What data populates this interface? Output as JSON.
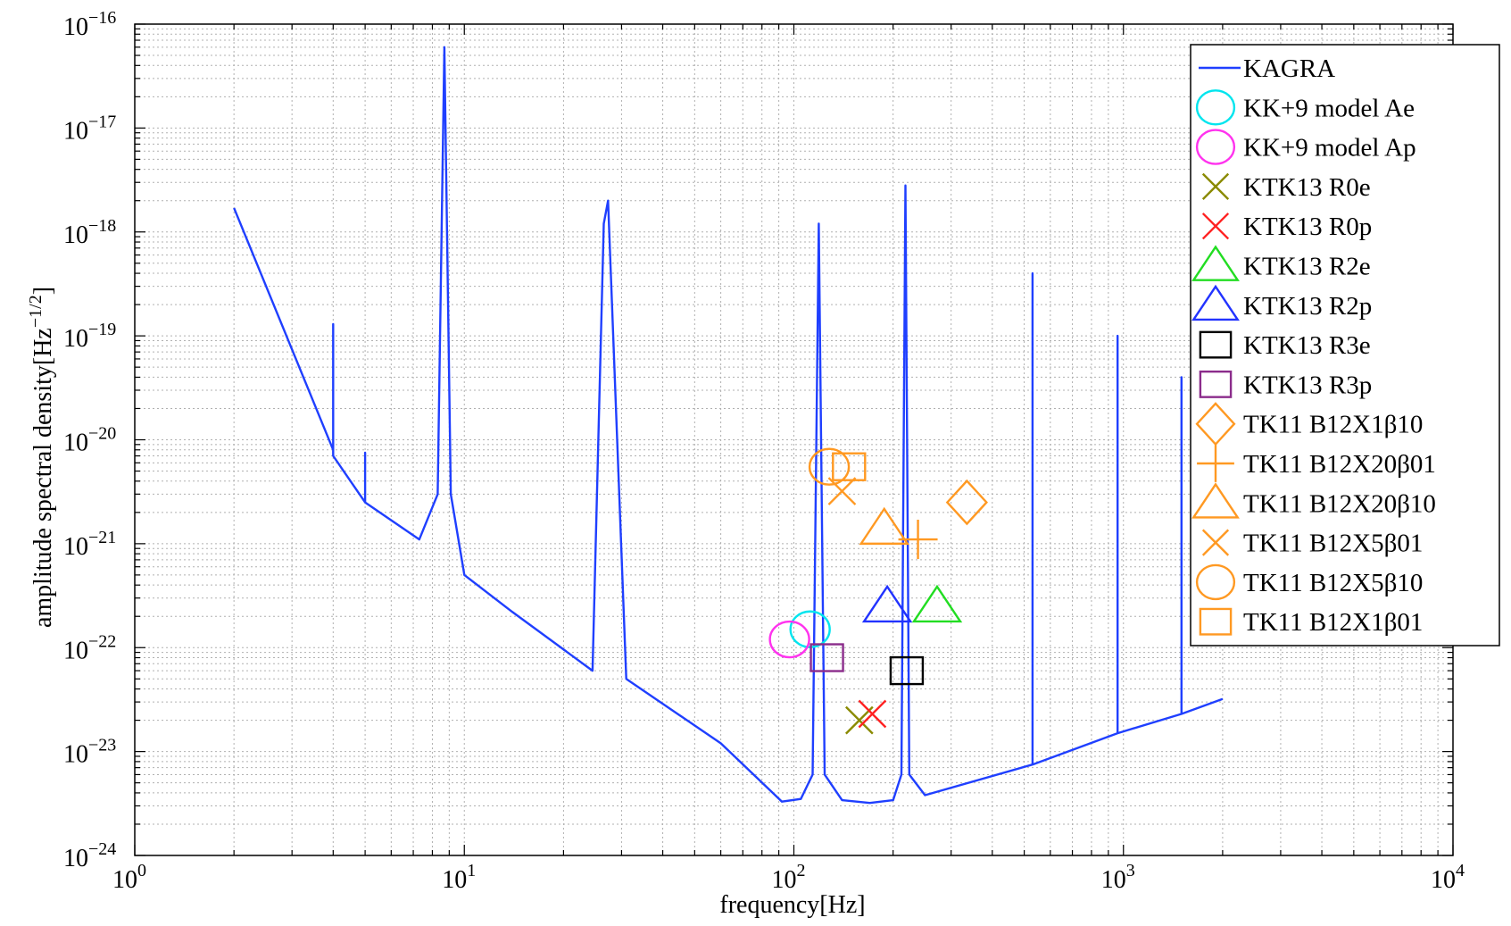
{
  "chart_data": {
    "type": "line",
    "xscale": "log",
    "yscale": "log",
    "xlim": [
      1,
      10000
    ],
    "ylim": [
      1e-24,
      1e-16
    ],
    "grid": true,
    "legend_position": "top-right",
    "xlabel": "frequency[Hz]",
    "ylabel": "amplitude spectral density[Hz",
    "ylabel_exponent": "−1/2",
    "ylabel_suffix": "]",
    "x_ticks": [
      {
        "base": "10",
        "exp": "0"
      },
      {
        "base": "10",
        "exp": "1"
      },
      {
        "base": "10",
        "exp": "2"
      },
      {
        "base": "10",
        "exp": "3"
      },
      {
        "base": "10",
        "exp": "4"
      }
    ],
    "y_ticks": [
      {
        "base": "10",
        "exp": "−24"
      },
      {
        "base": "10",
        "exp": "−23"
      },
      {
        "base": "10",
        "exp": "−22"
      },
      {
        "base": "10",
        "exp": "−21"
      },
      {
        "base": "10",
        "exp": "−20"
      },
      {
        "base": "10",
        "exp": "−19"
      },
      {
        "base": "10",
        "exp": "−18"
      },
      {
        "base": "10",
        "exp": "−17"
      },
      {
        "base": "10",
        "exp": "−16"
      }
    ],
    "noise_curve": {
      "name": "KAGRA",
      "color": "#1f3fff",
      "x": [
        2,
        4,
        4,
        4,
        5,
        5,
        5,
        7.3,
        8.3,
        8.7,
        9.1,
        10,
        14,
        24.5,
        26.5,
        27.3,
        31,
        60,
        92,
        105,
        114,
        119,
        124,
        140,
        170,
        200,
        212,
        218,
        224,
        250,
        530,
        530,
        530,
        960,
        960,
        960,
        1500,
        1500,
        1500,
        2000
      ],
      "y": [
        1.7e-18,
        8e-21,
        1.3e-19,
        7e-21,
        2.5e-21,
        7.5e-21,
        2.5e-21,
        1.1e-21,
        3e-21,
        6e-17,
        3e-21,
        5e-22,
        2.2e-22,
        6e-23,
        1.2e-18,
        2e-18,
        5e-23,
        1.2e-23,
        3.3e-24,
        3.5e-24,
        6e-24,
        1.2e-18,
        6e-24,
        3.4e-24,
        3.2e-24,
        3.4e-24,
        6e-24,
        2.8e-18,
        6e-24,
        3.8e-24,
        7.5e-24,
        4e-19,
        7.5e-24,
        1.5e-23,
        1e-19,
        1.5e-23,
        2.3e-23,
        4e-20,
        2.3e-23,
        3.2e-23
      ]
    },
    "points": [
      {
        "name": "KK+9 model Ae",
        "marker": "circle",
        "color": "#00e5ee",
        "x": 112,
        "y": 1.5e-22
      },
      {
        "name": "KK+9 model Ap",
        "marker": "circle",
        "color": "#ff33ee",
        "x": 97,
        "y": 1.2e-22
      },
      {
        "name": "KTK13 R0e",
        "marker": "x",
        "color": "#8a8a00",
        "x": 158,
        "y": 2e-23
      },
      {
        "name": "KTK13 R0p",
        "marker": "x",
        "color": "#ff2222",
        "x": 173,
        "y": 2.3e-23
      },
      {
        "name": "KTK13 R2e",
        "marker": "triangle",
        "color": "#22dd22",
        "x": 272,
        "y": 2.5e-22
      },
      {
        "name": "KTK13 R2p",
        "marker": "triangle",
        "color": "#2233ff",
        "x": 192,
        "y": 2.5e-22
      },
      {
        "name": "KTK13 R3e",
        "marker": "square",
        "color": "#000000",
        "x": 220,
        "y": 6e-23
      },
      {
        "name": "KTK13 R3p",
        "marker": "square",
        "color": "#8b2c8b",
        "x": 126,
        "y": 8e-23
      },
      {
        "name": "TK11 B12X1β10",
        "marker": "diamond",
        "color": "#ff9922",
        "x": 335,
        "y": 2.5e-21
      },
      {
        "name": "TK11 B12X20β01",
        "marker": "plus",
        "color": "#ff9922",
        "x": 238,
        "y": 1.1e-21
      },
      {
        "name": "TK11 B12X20β10",
        "marker": "triangle",
        "color": "#ff9922",
        "x": 188,
        "y": 1.4e-21
      },
      {
        "name": "TK11 B12X5β01",
        "marker": "x",
        "color": "#ff9922",
        "x": 140,
        "y": 3.2e-21
      },
      {
        "name": "TK11 B12X5β10",
        "marker": "circle",
        "color": "#ff9922",
        "x": 128,
        "y": 5.5e-21
      },
      {
        "name": "TK11 B12X1β01",
        "marker": "square",
        "color": "#ff9922",
        "x": 147,
        "y": 5.5e-21
      }
    ]
  }
}
